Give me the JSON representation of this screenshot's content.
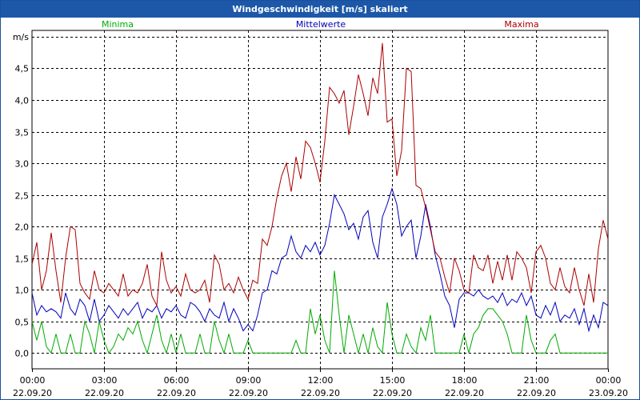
{
  "window": {
    "title": "Windgeschwindigkeit [m/s] skaliert"
  },
  "colors": {
    "titlebar": "#1d58a8",
    "minima": "#00aa00",
    "mittelwerte": "#0000bb",
    "maxima": "#aa0000",
    "grid": "#000000"
  },
  "chart_data": {
    "type": "line",
    "title": "Windgeschwindigkeit [m/s] skaliert",
    "ylabel": "m/s",
    "ylim": [
      -0.25,
      5.1
    ],
    "xlim": [
      0,
      24
    ],
    "yticks": [
      0.0,
      0.5,
      1.0,
      1.5,
      2.0,
      2.5,
      3.0,
      3.5,
      4.0,
      4.5
    ],
    "ytick_labels": [
      "0,0",
      "0,5",
      "1,0",
      "1,5",
      "2,0",
      "2,5",
      "3,0",
      "3,5",
      "4,0",
      "4,5"
    ],
    "xticks": [
      0,
      3,
      6,
      9,
      12,
      15,
      18,
      21,
      24
    ],
    "xtick_labels_time": [
      "00:00",
      "03:00",
      "06:00",
      "09:00",
      "12:00",
      "15:00",
      "18:00",
      "21:00",
      "00:00"
    ],
    "xtick_labels_date": [
      "22.09.20",
      "22.09.20",
      "22.09.20",
      "22.09.20",
      "22.09.20",
      "22.09.20",
      "22.09.20",
      "22.09.20",
      "23.09.20"
    ],
    "grid": true,
    "legend": "top",
    "series": [
      {
        "name": "Minima",
        "color": "#00aa00",
        "x": [
          0,
          0.2,
          0.4,
          0.6,
          0.8,
          1.0,
          1.2,
          1.4,
          1.6,
          1.8,
          2.0,
          2.2,
          2.4,
          2.6,
          2.8,
          3.0,
          3.2,
          3.4,
          3.6,
          3.8,
          4.0,
          4.2,
          4.4,
          4.6,
          4.8,
          5.0,
          5.2,
          5.4,
          5.6,
          5.8,
          6.0,
          6.2,
          6.4,
          6.6,
          6.8,
          7.0,
          7.2,
          7.4,
          7.6,
          7.8,
          8.0,
          8.2,
          8.4,
          8.6,
          8.8,
          9.0,
          9.2,
          9.4,
          9.6,
          9.8,
          10.0,
          10.2,
          10.4,
          10.6,
          10.8,
          11.0,
          11.2,
          11.4,
          11.6,
          11.8,
          12.0,
          12.2,
          12.4,
          12.6,
          12.8,
          13.0,
          13.2,
          13.4,
          13.6,
          13.8,
          14.0,
          14.2,
          14.4,
          14.6,
          14.8,
          15.0,
          15.2,
          15.4,
          15.6,
          15.8,
          16.0,
          16.2,
          16.4,
          16.6,
          16.8,
          17.0,
          17.2,
          17.4,
          17.6,
          17.8,
          18.0,
          18.2,
          18.4,
          18.6,
          18.8,
          19.0,
          19.2,
          19.4,
          19.6,
          19.8,
          20.0,
          20.2,
          20.4,
          20.6,
          20.8,
          21.0,
          21.2,
          21.4,
          21.6,
          21.8,
          22.0,
          22.2,
          22.4,
          22.6,
          22.8,
          23.0,
          23.2,
          23.4,
          23.6,
          23.8,
          24.0
        ],
        "values": [
          0.5,
          0.2,
          0.5,
          0.1,
          0.0,
          0.3,
          0.0,
          0.0,
          0.3,
          0.0,
          0.0,
          0.5,
          0.3,
          0.0,
          0.5,
          0.2,
          0.0,
          0.1,
          0.3,
          0.2,
          0.4,
          0.3,
          0.5,
          0.2,
          0.0,
          0.3,
          0.6,
          0.2,
          0.0,
          0.3,
          0.0,
          0.3,
          0.0,
          0.0,
          0.0,
          0.3,
          0.0,
          0.0,
          0.5,
          0.2,
          0.0,
          0.3,
          0.0,
          0.0,
          0.0,
          0.2,
          0.0,
          0.0,
          0.0,
          0.0,
          0.0,
          0.0,
          0.0,
          0.0,
          0.0,
          0.2,
          0.0,
          0.0,
          0.7,
          0.3,
          0.6,
          0.2,
          0.0,
          1.3,
          0.6,
          0.0,
          0.6,
          0.3,
          0.0,
          0.3,
          0.0,
          0.4,
          0.1,
          0.0,
          0.8,
          0.3,
          0.0,
          0.0,
          0.3,
          0.1,
          0.0,
          0.4,
          0.2,
          0.6,
          0.0,
          0.0,
          0.0,
          0.0,
          0.0,
          0.0,
          0.3,
          0.0,
          0.3,
          0.4,
          0.6,
          0.7,
          0.7,
          0.6,
          0.5,
          0.3,
          0.0,
          0.0,
          0.0,
          0.6,
          0.2,
          0.0,
          0.0,
          0.0,
          0.2,
          0.3,
          0.0,
          0.0,
          0.0,
          0.0,
          0.0,
          0.0,
          0.0,
          0.0,
          0.0,
          0.0,
          0.0
        ]
      },
      {
        "name": "Mittelwerte",
        "color": "#0000bb",
        "x": [
          0,
          0.2,
          0.4,
          0.6,
          0.8,
          1.0,
          1.2,
          1.4,
          1.6,
          1.8,
          2.0,
          2.2,
          2.4,
          2.6,
          2.8,
          3.0,
          3.2,
          3.4,
          3.6,
          3.8,
          4.0,
          4.2,
          4.4,
          4.6,
          4.8,
          5.0,
          5.2,
          5.4,
          5.6,
          5.8,
          6.0,
          6.2,
          6.4,
          6.6,
          6.8,
          7.0,
          7.2,
          7.4,
          7.6,
          7.8,
          8.0,
          8.2,
          8.4,
          8.6,
          8.8,
          9.0,
          9.2,
          9.4,
          9.6,
          9.8,
          10.0,
          10.2,
          10.4,
          10.6,
          10.8,
          11.0,
          11.2,
          11.4,
          11.6,
          11.8,
          12.0,
          12.2,
          12.4,
          12.6,
          12.8,
          13.0,
          13.2,
          13.4,
          13.6,
          13.8,
          14.0,
          14.2,
          14.4,
          14.6,
          14.8,
          15.0,
          15.2,
          15.4,
          15.6,
          15.8,
          16.0,
          16.2,
          16.4,
          16.6,
          16.8,
          17.0,
          17.2,
          17.4,
          17.6,
          17.8,
          18.0,
          18.2,
          18.4,
          18.6,
          18.8,
          19.0,
          19.2,
          19.4,
          19.6,
          19.8,
          20.0,
          20.2,
          20.4,
          20.6,
          20.8,
          21.0,
          21.2,
          21.4,
          21.6,
          21.8,
          22.0,
          22.2,
          22.4,
          22.6,
          22.8,
          23.0,
          23.2,
          23.4,
          23.6,
          23.8,
          24.0
        ],
        "values": [
          0.95,
          0.6,
          0.75,
          0.65,
          0.7,
          0.65,
          0.55,
          0.95,
          0.7,
          0.6,
          0.85,
          0.75,
          0.5,
          0.85,
          0.5,
          0.6,
          0.75,
          0.65,
          0.55,
          0.7,
          0.6,
          0.7,
          0.8,
          0.55,
          0.7,
          0.65,
          0.75,
          0.55,
          0.7,
          0.65,
          0.75,
          0.6,
          0.55,
          0.8,
          0.75,
          0.65,
          0.5,
          0.7,
          0.6,
          0.55,
          0.8,
          0.5,
          0.7,
          0.55,
          0.35,
          0.45,
          0.35,
          0.6,
          0.95,
          1.0,
          1.3,
          1.25,
          1.5,
          1.55,
          1.85,
          1.6,
          1.5,
          1.7,
          1.6,
          1.75,
          1.55,
          1.7,
          2.05,
          2.5,
          2.35,
          2.2,
          1.95,
          2.05,
          1.8,
          2.15,
          2.25,
          1.75,
          1.5,
          2.15,
          2.35,
          2.6,
          2.35,
          1.85,
          2.0,
          2.1,
          1.5,
          1.85,
          2.35,
          2.0,
          1.55,
          1.25,
          0.9,
          0.75,
          0.4,
          0.85,
          0.95,
          0.95,
          0.9,
          1.0,
          0.9,
          0.85,
          0.9,
          0.8,
          0.95,
          0.75,
          0.85,
          0.8,
          0.95,
          0.75,
          0.9,
          0.6,
          0.55,
          0.75,
          0.6,
          0.8,
          0.5,
          0.6,
          0.55,
          0.7,
          0.45,
          0.7,
          0.35,
          0.6,
          0.4,
          0.8,
          0.75
        ]
      },
      {
        "name": "Maxima",
        "color": "#aa0000",
        "x": [
          0,
          0.2,
          0.4,
          0.6,
          0.8,
          1.0,
          1.2,
          1.4,
          1.6,
          1.8,
          2.0,
          2.2,
          2.4,
          2.6,
          2.8,
          3.0,
          3.2,
          3.4,
          3.6,
          3.8,
          4.0,
          4.2,
          4.4,
          4.6,
          4.8,
          5.0,
          5.2,
          5.4,
          5.6,
          5.8,
          6.0,
          6.2,
          6.4,
          6.6,
          6.8,
          7.0,
          7.2,
          7.4,
          7.6,
          7.8,
          8.0,
          8.2,
          8.4,
          8.6,
          8.8,
          9.0,
          9.2,
          9.4,
          9.6,
          9.8,
          10.0,
          10.2,
          10.4,
          10.6,
          10.8,
          11.0,
          11.2,
          11.4,
          11.6,
          11.8,
          12.0,
          12.2,
          12.4,
          12.6,
          12.8,
          13.0,
          13.2,
          13.4,
          13.6,
          13.8,
          14.0,
          14.2,
          14.4,
          14.6,
          14.8,
          15.0,
          15.2,
          15.4,
          15.6,
          15.8,
          16.0,
          16.2,
          16.4,
          16.6,
          16.8,
          17.0,
          17.2,
          17.4,
          17.6,
          17.8,
          18.0,
          18.2,
          18.4,
          18.6,
          18.8,
          19.0,
          19.2,
          19.4,
          19.6,
          19.8,
          20.0,
          20.2,
          20.4,
          20.6,
          20.8,
          21.0,
          21.2,
          21.4,
          21.6,
          21.8,
          22.0,
          22.2,
          22.4,
          22.6,
          22.8,
          23.0,
          23.2,
          23.4,
          23.6,
          23.8,
          24.0
        ],
        "values": [
          1.4,
          1.75,
          1.0,
          1.3,
          1.9,
          1.3,
          0.8,
          1.5,
          2.0,
          1.95,
          1.1,
          0.95,
          0.85,
          1.3,
          1.0,
          0.95,
          1.1,
          1.0,
          0.9,
          1.25,
          0.9,
          1.0,
          0.95,
          1.1,
          1.4,
          0.9,
          0.75,
          1.6,
          1.15,
          0.95,
          1.05,
          0.9,
          1.25,
          1.0,
          0.95,
          1.0,
          1.15,
          0.8,
          1.55,
          1.4,
          1.0,
          1.1,
          0.95,
          1.2,
          1.0,
          0.85,
          1.15,
          1.1,
          1.8,
          1.7,
          2.0,
          2.45,
          2.8,
          3.0,
          2.55,
          3.1,
          2.75,
          3.35,
          3.25,
          3.0,
          2.7,
          3.35,
          4.2,
          4.1,
          3.95,
          4.15,
          3.45,
          3.9,
          4.4,
          4.1,
          3.75,
          4.35,
          4.1,
          4.9,
          3.65,
          3.7,
          2.8,
          3.2,
          4.5,
          4.45,
          2.65,
          2.6,
          2.3,
          1.95,
          1.6,
          1.5,
          1.2,
          0.95,
          1.5,
          1.3,
          1.0,
          0.95,
          1.55,
          1.35,
          1.3,
          1.55,
          1.1,
          1.45,
          1.15,
          1.55,
          1.15,
          1.6,
          1.5,
          1.35,
          0.95,
          1.6,
          1.7,
          1.5,
          1.1,
          1.0,
          1.35,
          1.05,
          0.95,
          1.35,
          1.0,
          0.75,
          1.25,
          0.8,
          1.65,
          2.1,
          1.8
        ]
      }
    ]
  }
}
